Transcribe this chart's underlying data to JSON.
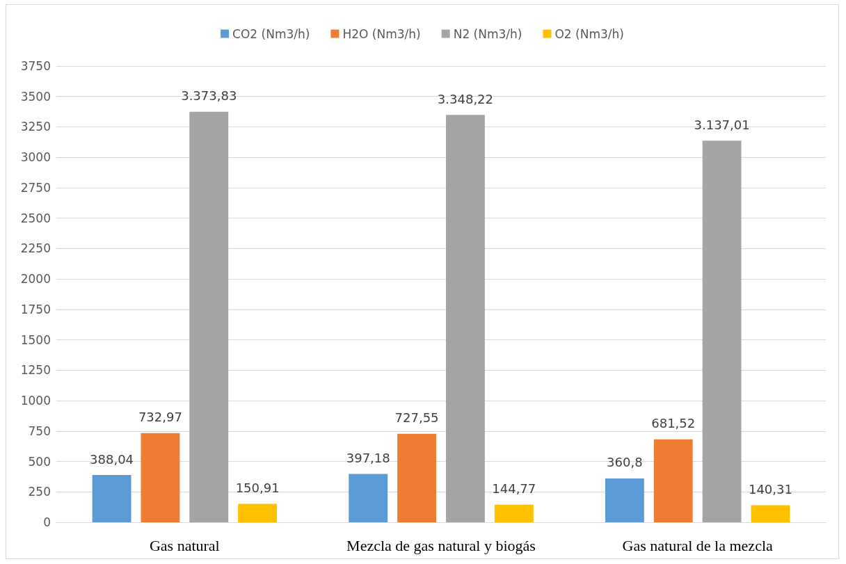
{
  "chart_data": {
    "type": "bar",
    "categories": [
      "Gas natural",
      "Mezcla de gas natural y biogás",
      "Gas natural de la mezcla"
    ],
    "series": [
      {
        "name": "CO2 (Nm3/h)",
        "color": "#5b9bd5",
        "values": [
          388.04,
          397.18,
          360.8
        ],
        "value_labels": [
          "388,04",
          "397,18",
          "360,8"
        ]
      },
      {
        "name": "H2O (Nm3/h)",
        "color": "#ed7d31",
        "values": [
          732.97,
          727.55,
          681.52
        ],
        "value_labels": [
          "732,97",
          "727,55",
          "681,52"
        ]
      },
      {
        "name": "N2 (Nm3/h)",
        "color": "#a5a5a5",
        "values": [
          3373.83,
          3348.22,
          3137.01
        ],
        "value_labels": [
          "3.373,83",
          "3.348,22",
          "3.137,01"
        ]
      },
      {
        "name": "O2 (Nm3/h)",
        "color": "#ffc000",
        "values": [
          150.91,
          144.77,
          140.31
        ],
        "value_labels": [
          "150,91",
          "144,77",
          "140,31"
        ]
      }
    ],
    "ylim": [
      0,
      3750
    ],
    "yticks": [
      0,
      250,
      500,
      750,
      1000,
      1250,
      1500,
      1750,
      2000,
      2250,
      2500,
      2750,
      3000,
      3250,
      3500,
      3750
    ],
    "grid": "y",
    "legend": "top"
  }
}
